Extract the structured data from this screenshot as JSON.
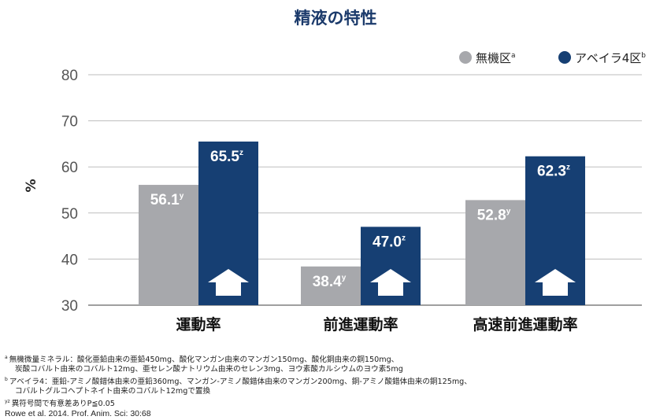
{
  "chart_data": {
    "type": "bar",
    "title": "精液の特性",
    "ylabel": "%",
    "ylim": [
      30,
      80
    ],
    "yticks": [
      30,
      40,
      50,
      60,
      70,
      80
    ],
    "grid": true,
    "legend_position": "top-right",
    "categories": [
      "運動率",
      "前進運動率",
      "高速前進運動率"
    ],
    "series": [
      {
        "name": "無機区",
        "name_sup": "a",
        "color": "#a7a8ac",
        "values": [
          56.1,
          38.4,
          52.8
        ],
        "labels": [
          "56.1",
          "38.4",
          "52.8"
        ],
        "sups": [
          "y",
          "y",
          "y"
        ]
      },
      {
        "name": "アベイラ4区",
        "name_sup": "b",
        "color": "#163f73",
        "values": [
          65.5,
          47.0,
          62.3
        ],
        "labels": [
          "65.5",
          "47.0",
          "62.3"
        ],
        "sups": [
          "z",
          "z",
          "z"
        ]
      }
    ],
    "annotation_icon": "up-arrow-icon"
  },
  "footnotes": {
    "a_marker": "a",
    "a_line1": "無機微量ミネラル：酸化亜鉛由来の亜鉛450mg、酸化マンガン由来のマンガン150mg、酸化銅由来の銅150mg、",
    "a_line2": "炭酸コバルト由来のコバルト12mg、亜セレン酸ナトリウム由来のセレン3mg、ヨウ素酸カルシウムのヨウ素5mg",
    "b_marker": "b",
    "b_line1": "アベイラ4：亜鉛-アミノ酸錯体由来の亜鉛360mg、マンガン-アミノ酸錯体由来のマンガン200mg、銅-アミノ酸錯体由来の銅125mg、",
    "b_line2": "コバルトグルコヘプトネイト由来のコバルト12mgで置換",
    "yz_marker": "yz",
    "yz_text": "異符号間で有意差ありP≦0.05",
    "citation": "Rowe et al. 2014. Prof. Anim. Sci: 30:68"
  }
}
